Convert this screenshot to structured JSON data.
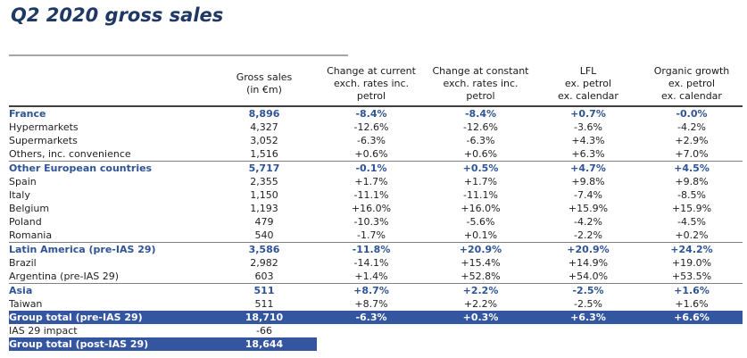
{
  "title": "Q2 2020 gross sales",
  "colors": {
    "title_text": "#1F3864",
    "section_text": "#2E5496",
    "total_bar": "#3456A0",
    "header_rule": "#404040",
    "title_rule": "#A6A6A6",
    "separator": "#808080"
  },
  "table": {
    "columns": [
      "Gross sales\n(in €m)",
      "Change at current\nexch. rates inc.\npetrol",
      "Change at constant\nexch. rates inc.\npetrol",
      "LFL\nex. petrol\nex. calendar",
      "Organic growth\nex. petrol\nex. calendar"
    ],
    "rows": [
      {
        "label": "France",
        "values": [
          "8,896",
          "-8.4%",
          "-8.4%",
          "+0.7%",
          "-0.0%"
        ],
        "style": "section"
      },
      {
        "label": "Hypermarkets",
        "values": [
          "4,327",
          "-12.6%",
          "-12.6%",
          "-3.6%",
          "-4.2%"
        ],
        "style": "normal"
      },
      {
        "label": "Supermarkets",
        "values": [
          "3,052",
          "-6.3%",
          "-6.3%",
          "+4.3%",
          "+2.9%"
        ],
        "style": "normal"
      },
      {
        "label": "Others, inc. convenience",
        "values": [
          "1,516",
          "+0.6%",
          "+0.6%",
          "+6.3%",
          "+7.0%"
        ],
        "style": "normal"
      },
      {
        "label": "Other European countries",
        "values": [
          "5,717",
          "-0.1%",
          "+0.5%",
          "+4.7%",
          "+4.5%"
        ],
        "style": "section",
        "separator_above": true
      },
      {
        "label": "Spain",
        "values": [
          "2,355",
          "+1.7%",
          "+1.7%",
          "+9.8%",
          "+9.8%"
        ],
        "style": "normal"
      },
      {
        "label": "Italy",
        "values": [
          "1,150",
          "-11.1%",
          "-11.1%",
          "-7.4%",
          "-8.5%"
        ],
        "style": "normal"
      },
      {
        "label": "Belgium",
        "values": [
          "1,193",
          "+16.0%",
          "+16.0%",
          "+15.9%",
          "+15.9%"
        ],
        "style": "normal"
      },
      {
        "label": "Poland",
        "values": [
          "479",
          "-10.3%",
          "-5.6%",
          "-4.2%",
          "-4.5%"
        ],
        "style": "normal"
      },
      {
        "label": "Romania",
        "values": [
          "540",
          "-1.7%",
          "+0.1%",
          "-2.2%",
          "+0.2%"
        ],
        "style": "normal"
      },
      {
        "label": "Latin America (pre-IAS 29)",
        "values": [
          "3,586",
          "-11.8%",
          "+20.9%",
          "+20.9%",
          "+24.2%"
        ],
        "style": "section",
        "separator_above": true
      },
      {
        "label": "Brazil",
        "values": [
          "2,982",
          "-14.1%",
          "+15.4%",
          "+14.9%",
          "+19.0%"
        ],
        "style": "normal"
      },
      {
        "label": "Argentina (pre-IAS 29)",
        "values": [
          "603",
          "+1.4%",
          "+52.8%",
          "+54.0%",
          "+53.5%"
        ],
        "style": "normal"
      },
      {
        "label": "Asia",
        "values": [
          "511",
          "+8.7%",
          "+2.2%",
          "-2.5%",
          "+1.6%"
        ],
        "style": "section",
        "separator_above": true
      },
      {
        "label": "Taiwan",
        "values": [
          "511",
          "+8.7%",
          "+2.2%",
          "-2.5%",
          "+1.6%"
        ],
        "style": "normal"
      },
      {
        "label": "Group total (pre-IAS 29)",
        "values": [
          "18,710",
          "-6.3%",
          "+0.3%",
          "+6.3%",
          "+6.6%"
        ],
        "style": "total-full"
      },
      {
        "label": "IAS 29 impact",
        "values": [
          "-66",
          "",
          "",
          "",
          ""
        ],
        "style": "normal"
      },
      {
        "label": "Group total (post-IAS 29)",
        "values": [
          "18,644",
          "",
          "",
          "",
          ""
        ],
        "style": "total-partial"
      }
    ]
  }
}
